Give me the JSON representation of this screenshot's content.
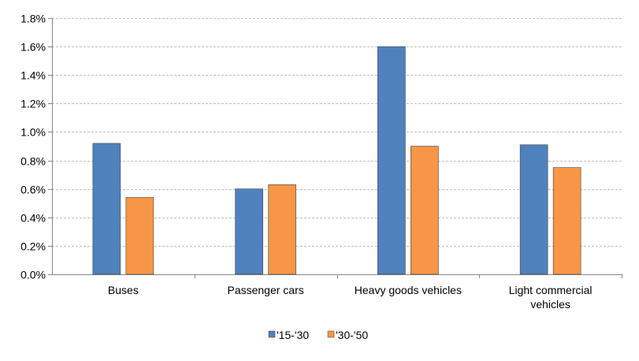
{
  "chart_data": {
    "type": "bar",
    "categories": [
      "Buses",
      "Passenger cars",
      "Heavy goods vehicles",
      "Light commercial vehicles"
    ],
    "category_lines": [
      [
        "Buses"
      ],
      [
        "Passenger cars"
      ],
      [
        "Heavy goods vehicles"
      ],
      [
        "Light commercial",
        "vehicles"
      ]
    ],
    "series": [
      {
        "name": "'15-'30",
        "color": "#4f81bd",
        "values": [
          0.92,
          0.6,
          1.6,
          0.91
        ]
      },
      {
        "name": "'30-'50",
        "color": "#f79646",
        "values": [
          0.54,
          0.63,
          0.9,
          0.75
        ]
      }
    ],
    "ylim": [
      0,
      1.8
    ],
    "yticks": [
      "0.0%",
      "0.2%",
      "0.4%",
      "0.6%",
      "0.8%",
      "1.0%",
      "1.2%",
      "1.4%",
      "1.6%",
      "1.8%"
    ],
    "unit": "%",
    "grid": "horizontal dashed",
    "legend": "bottom"
  }
}
